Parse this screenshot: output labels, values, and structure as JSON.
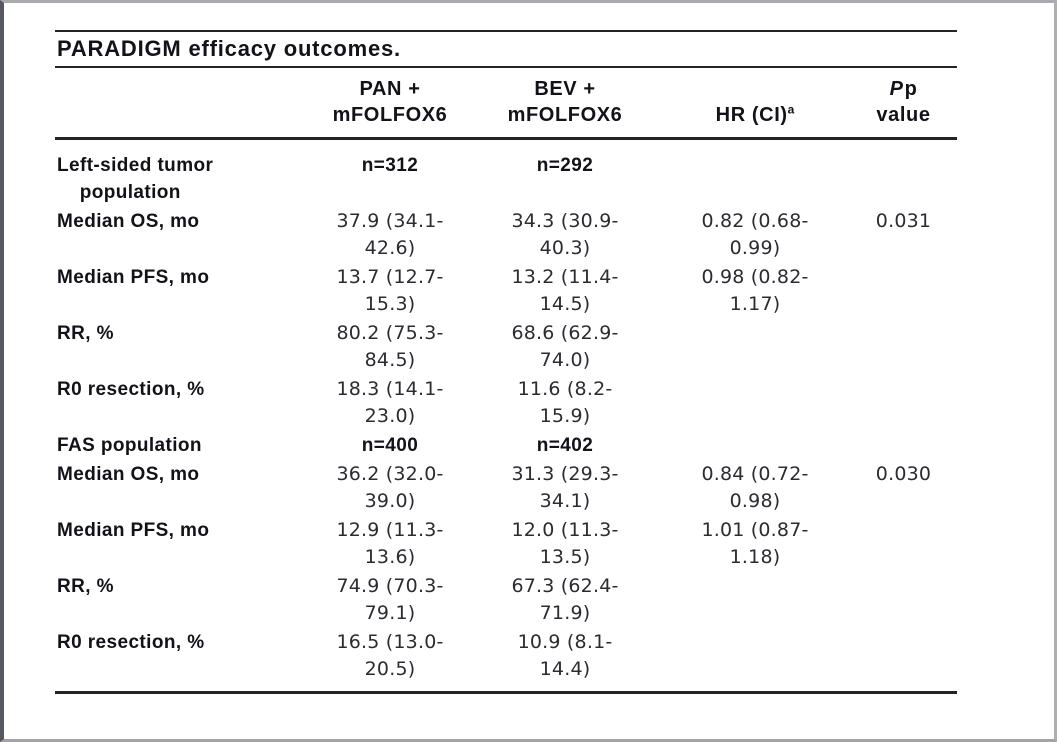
{
  "page": {
    "background": "#ffffff",
    "frame_border": "#a6a7ab",
    "rule_color": "#232327",
    "text_color": "#17181c"
  },
  "table": {
    "title": "PARADIGM efficacy outcomes.",
    "header": {
      "pan": "PAN +\nmFOLFOX6",
      "bev": "BEV +\nmFOLFOX6",
      "hr": "HR (CI)",
      "hr_sup": "a",
      "p_italic": "P",
      "p_suffix": "p",
      "p_line2": "value"
    },
    "rows": [
      {
        "label": "Left-sided tumor\n    population",
        "pan": "n=312",
        "bev": "n=292",
        "hr": "",
        "p": "",
        "strong": true
      },
      {
        "label": "Median OS, mo",
        "pan": "37.9 (34.1-\n42.6)",
        "bev": "34.3 (30.9-\n40.3)",
        "hr": "0.82 (0.68-\n0.99)",
        "p": "0.031",
        "strong": false
      },
      {
        "label": "Median PFS, mo",
        "pan": "13.7 (12.7-\n15.3)",
        "bev": "13.2 (11.4-\n14.5)",
        "hr": "0.98 (0.82-\n1.17)",
        "p": "",
        "strong": false
      },
      {
        "label": "RR, %",
        "pan": "80.2 (75.3-\n84.5)",
        "bev": "68.6 (62.9-\n74.0)",
        "hr": "",
        "p": "",
        "strong": false
      },
      {
        "label": "R0 resection, %",
        "pan": "18.3 (14.1-\n23.0)",
        "bev": "11.6 (8.2-\n15.9)",
        "hr": "",
        "p": "",
        "strong": false
      },
      {
        "label": "FAS population",
        "pan": "n=400",
        "bev": "n=402",
        "hr": "",
        "p": "",
        "strong": true
      },
      {
        "label": "Median OS, mo",
        "pan": "36.2 (32.0-\n39.0)",
        "bev": "31.3 (29.3-\n34.1)",
        "hr": "0.84 (0.72-\n0.98)",
        "p": "0.030",
        "strong": false
      },
      {
        "label": "Median PFS, mo",
        "pan": "12.9 (11.3-\n13.6)",
        "bev": "12.0 (11.3-\n13.5)",
        "hr": "1.01 (0.87-\n1.18)",
        "p": "",
        "strong": false
      },
      {
        "label": "RR, %",
        "pan": "74.9 (70.3-\n79.1)",
        "bev": "67.3 (62.4-\n71.9)",
        "hr": "",
        "p": "",
        "strong": false
      },
      {
        "label": "R0 resection, %",
        "pan": "16.5 (13.0-\n20.5)",
        "bev": "10.9 (8.1-\n14.4)",
        "hr": "",
        "p": "",
        "strong": false
      }
    ]
  }
}
